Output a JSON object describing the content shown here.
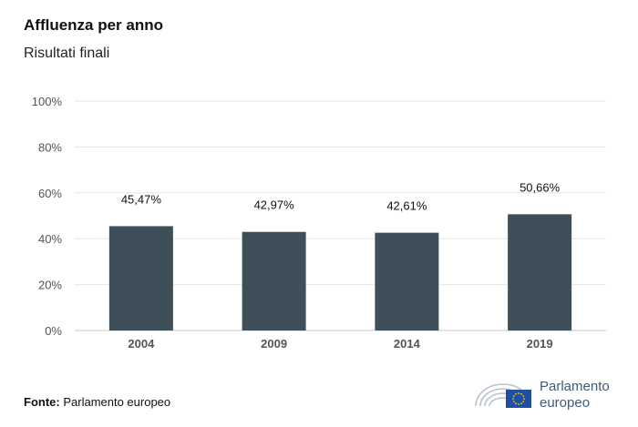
{
  "header": {
    "title": "Affluenza per anno",
    "subtitle": "Risultati finali"
  },
  "chart_data": {
    "type": "bar",
    "categories": [
      "2004",
      "2009",
      "2014",
      "2019"
    ],
    "values": [
      45.47,
      42.97,
      42.61,
      50.66
    ],
    "value_labels": [
      "45,47%",
      "42,97%",
      "42,61%",
      "50,66%"
    ],
    "ylim": [
      0,
      100
    ],
    "yticks": [
      0,
      20,
      40,
      60,
      80,
      100
    ],
    "ytick_labels": [
      "0%",
      "20%",
      "40%",
      "60%",
      "80%",
      "100%"
    ],
    "xlabel": "",
    "ylabel": "",
    "grid": true,
    "bar_color": "#3f4f5a"
  },
  "footer": {
    "source_label": "Fonte:",
    "source_value": "Parlamento europeo"
  },
  "logo": {
    "line1": "Parlamento",
    "line2": "europeo",
    "flag_color": "#1f4fa0",
    "star_color": "#ffcc00",
    "text_color": "#3d5a78"
  }
}
